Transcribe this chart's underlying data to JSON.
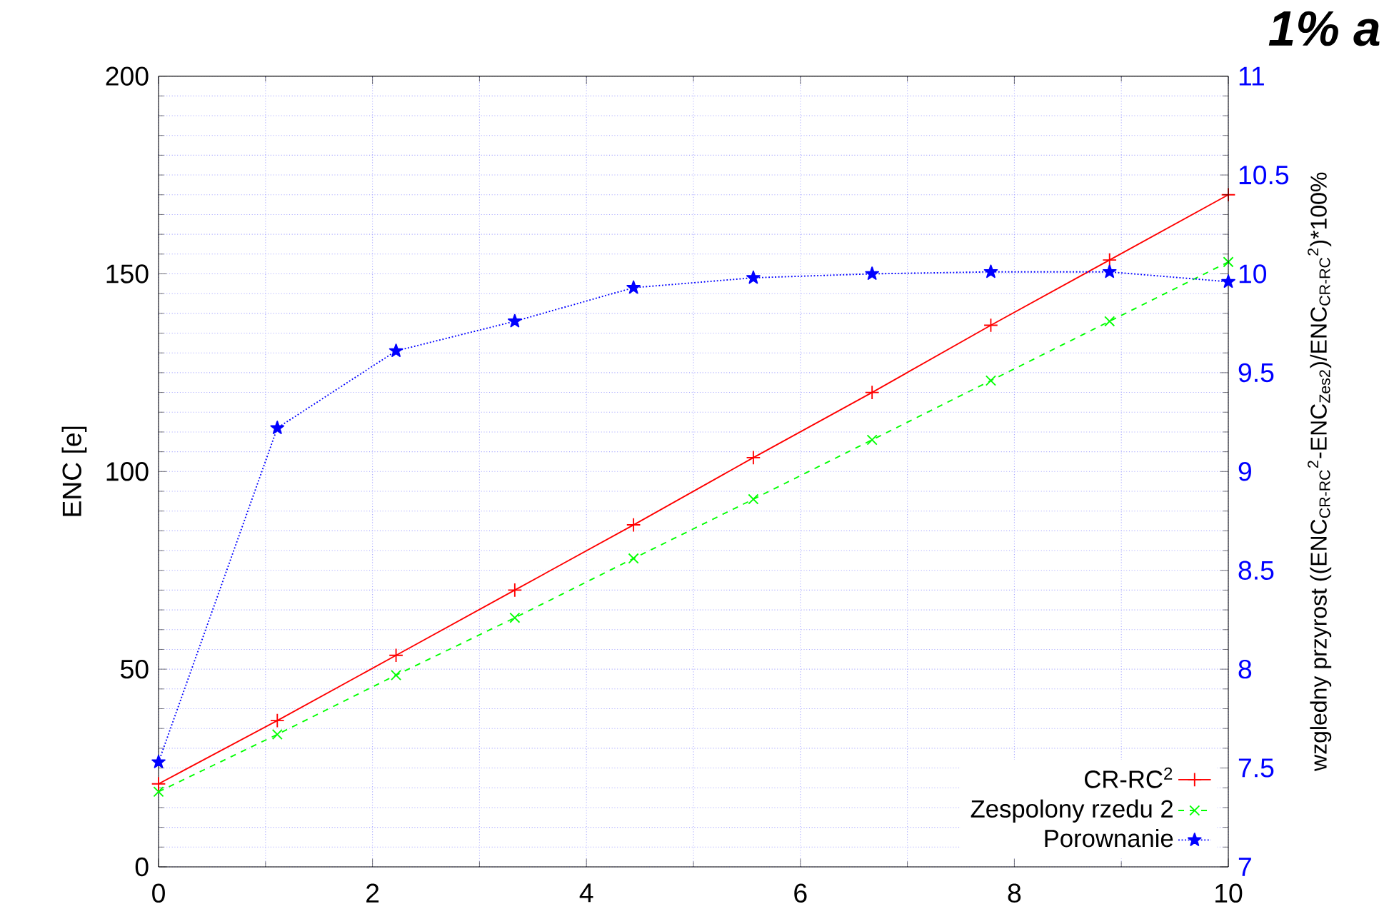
{
  "chart_data": {
    "type": "line",
    "x": [
      0,
      1.11,
      2.22,
      3.33,
      4.44,
      5.56,
      6.67,
      7.78,
      8.89,
      10
    ],
    "ylabel": "ENC [e]",
    "y2label": "wzgledny przyrost ((ENC$_{CR-RC}$$^{2}$-ENC$_{Zes2}$)/ENC$_{CR-RC}$$^{2}$)*100%",
    "xlim": [
      0,
      10
    ],
    "xticks": [
      0,
      2,
      4,
      6,
      8,
      10
    ],
    "ylim": [
      0,
      200
    ],
    "yticks": [
      0,
      50,
      100,
      150,
      200
    ],
    "y2lim": [
      7,
      11
    ],
    "y2ticks": [
      7,
      7.5,
      8,
      8.5,
      9,
      9.5,
      10,
      10.5,
      11
    ],
    "grid": true,
    "legend": "bottom right",
    "annotations": [
      "1% a"
    ],
    "series": [
      {
        "name": "CR-RC$^{2}$",
        "color": "#ff0000",
        "marker": "plus",
        "line_style": "solid",
        "values": [
          21,
          37,
          53.5,
          70,
          86.5,
          103.5,
          120,
          137,
          153.5,
          170
        ]
      },
      {
        "name": "Zespolony rzedu 2",
        "color": "#00ff00",
        "marker": "cross",
        "line_style": "dashed",
        "values": [
          19,
          33.5,
          48.5,
          63,
          78,
          93,
          108,
          123,
          138,
          153
        ]
      },
      {
        "name": "Porownanie",
        "color": "#0000ff",
        "marker": "star",
        "line_style": "dotted",
        "axis": "y2",
        "values": [
          7.53,
          9.22,
          9.61,
          9.76,
          9.93,
          9.98,
          10.0,
          10.01,
          10.01,
          9.96
        ]
      }
    ]
  }
}
